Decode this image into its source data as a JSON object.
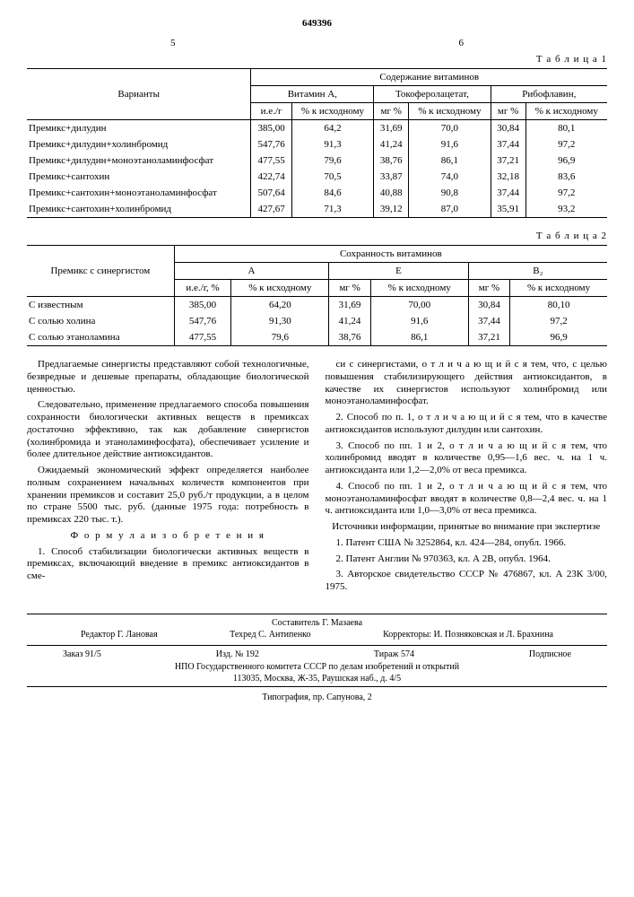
{
  "doc_number": "649396",
  "page_left": "5",
  "page_right": "6",
  "table1": {
    "caption": "Т а б л и ц а  1",
    "super_header": "Содержание витаминов",
    "col_variants": "Варианты",
    "groups": [
      "Витамин А,",
      "Токоферолацетат,",
      "Рибофлавин,"
    ],
    "sub1": "и.е./г",
    "sub2": "% к исходному",
    "sub3": "мг %",
    "sub4": "% к исходному",
    "sub5": "мг %",
    "sub6": "% к исходному",
    "rows": [
      {
        "label": "Премикс+дилудин",
        "v": [
          "385,00",
          "64,2",
          "31,69",
          "70,0",
          "30,84",
          "80,1"
        ]
      },
      {
        "label": "Премикс+дилудин+холинбромид",
        "v": [
          "547,76",
          "91,3",
          "41,24",
          "91,6",
          "37,44",
          "97,2"
        ]
      },
      {
        "label": "Премикс+дилудин+моноэтаноламинфосфат",
        "v": [
          "477,55",
          "79,6",
          "38,76",
          "86,1",
          "37,21",
          "96,9"
        ]
      },
      {
        "label": "Премикс+сантохин",
        "v": [
          "422,74",
          "70,5",
          "33,87",
          "74,0",
          "32,18",
          "83,6"
        ]
      },
      {
        "label": "Премикс+сантохин+моноэтаноламинфосфат",
        "v": [
          "507,64",
          "84,6",
          "40,88",
          "90,8",
          "37,44",
          "97,2"
        ]
      },
      {
        "label": "Премикс+сантохин+холинбромид",
        "v": [
          "427,67",
          "71,3",
          "39,12",
          "87,0",
          "35,91",
          "93,2"
        ]
      }
    ]
  },
  "table2": {
    "caption": "Т а б л и ц а  2",
    "super_header": "Сохранность витаминов",
    "col_variants": "Премикс с синергистом",
    "groups": [
      "А",
      "Е",
      "В₂"
    ],
    "sub1": "и.е./г, %",
    "sub2": "% к исходному",
    "sub3": "мг %",
    "sub4": "% к исходному",
    "sub5": "мг %",
    "sub6": "% к исходному",
    "rows": [
      {
        "label": "С известным",
        "v": [
          "385,00",
          "64,20",
          "31,69",
          "70,00",
          "30,84",
          "80,10"
        ]
      },
      {
        "label": "С солью холина",
        "v": [
          "547,76",
          "91,30",
          "41,24",
          "91,6",
          "37,44",
          "97,2"
        ]
      },
      {
        "label": "С солью этаноламина",
        "v": [
          "477,55",
          "79,6",
          "38,76",
          "86,1",
          "37,21",
          "96,9"
        ]
      }
    ]
  },
  "body": {
    "p1": "Предлагаемые синергисты представляют собой технологичные, безвредные и дешевые препараты, обладающие биологической ценностью.",
    "p2": "Следовательно, применение предлагаемого способа повышения сохранности биологически активных веществ в премиксах достаточно эффективно, так как добавление синергистов (холинбромида и этаноламинфосфата), обеспечивает усиление и более длительное действие антиоксидантов.",
    "p3": "Ожидаемый экономический эффект определяется наиболее полным сохранением начальных количеств компонентов при хранении премиксов и составит 25,0 руб./т продукции, а в целом по стране 5500 тыс. руб. (данные 1975 года: потребность в премиксах 220 тыс. т.).",
    "formula": "Ф о р м у л а  и з о б р е т е н и я",
    "c1": "1. Способ стабилизации биологически активных веществ в премиксах, включающий введение в премикс антиоксидантов в сме-",
    "p4": "си с синергистами, о т л и ч а ю щ и й с я  тем, что, с целью повышения стабилизирующего действия антиоксидантов, в качестве их синергистов используют холинбромид или моноэтаноламинфосфат.",
    "p5": "2. Способ по п. 1, о т л и ч а ю щ и й с я тем, что в качестве антиоксидантов используют дилудин или сантохин.",
    "p6": "3. Способ по пп. 1 и 2, о т л и ч а ю щ и й с я  тем, что холинбромид вводят в количестве 0,95—1,6 вес. ч. на 1 ч. антиоксиданта или 1,2—2,0% от веса премикса.",
    "p7": "4. Способ по пп. 1 и 2, о т л и ч а ю щ и й с я  тем, что моноэтаноламинфосфат вводят в количестве 0,8—2,4 вес. ч. на 1 ч. антиоксиданта или 1,0—3,0% от веса премикса.",
    "src_title": "Источники информации, принятые во внимание при экспертизе",
    "s1": "1. Патент США № 3252864, кл. 424—284, опубл. 1966.",
    "s2": "2. Патент Англии № 970363, кл. А 2В, опубл. 1964.",
    "s3": "3. Авторское свидетельство СССР № 476867, кл. А 23К 3/00, 1975."
  },
  "footer": {
    "compiler": "Составитель Г. Мазаева",
    "editor": "Редактор Г. Лановая",
    "tehred": "Техред С. Антипенко",
    "correctors": "Корректоры: И. Позняковская и Л. Брахнина",
    "order": "Заказ 91/5",
    "izd": "Изд. № 192",
    "tirazh": "Тираж 574",
    "sub": "Подписное",
    "org": "НПО Государственного комитета СССР по делам изобретений и открытий",
    "addr": "113035, Москва, Ж-35, Раушская наб., д. 4/5",
    "typo": "Типография, пр. Сапунова, 2"
  }
}
